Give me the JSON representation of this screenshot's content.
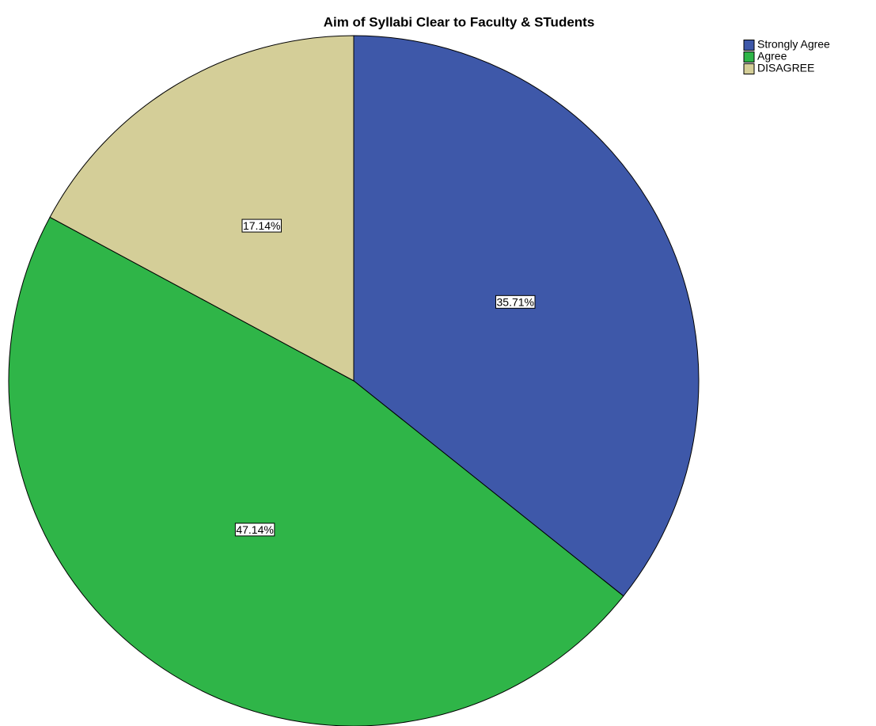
{
  "chart_data": {
    "type": "pie",
    "title": "Aim of Syllabi Clear to Faculty & STudents",
    "categories": [
      "Strongly Agree",
      "Agree",
      "DISAGREE"
    ],
    "values": [
      35.71,
      47.14,
      17.14
    ],
    "value_labels": [
      "35.71%",
      "47.14%",
      "17.14%"
    ],
    "colors": [
      "#3e58a9",
      "#2fb548",
      "#d4ce98"
    ],
    "legend": "top-right"
  }
}
